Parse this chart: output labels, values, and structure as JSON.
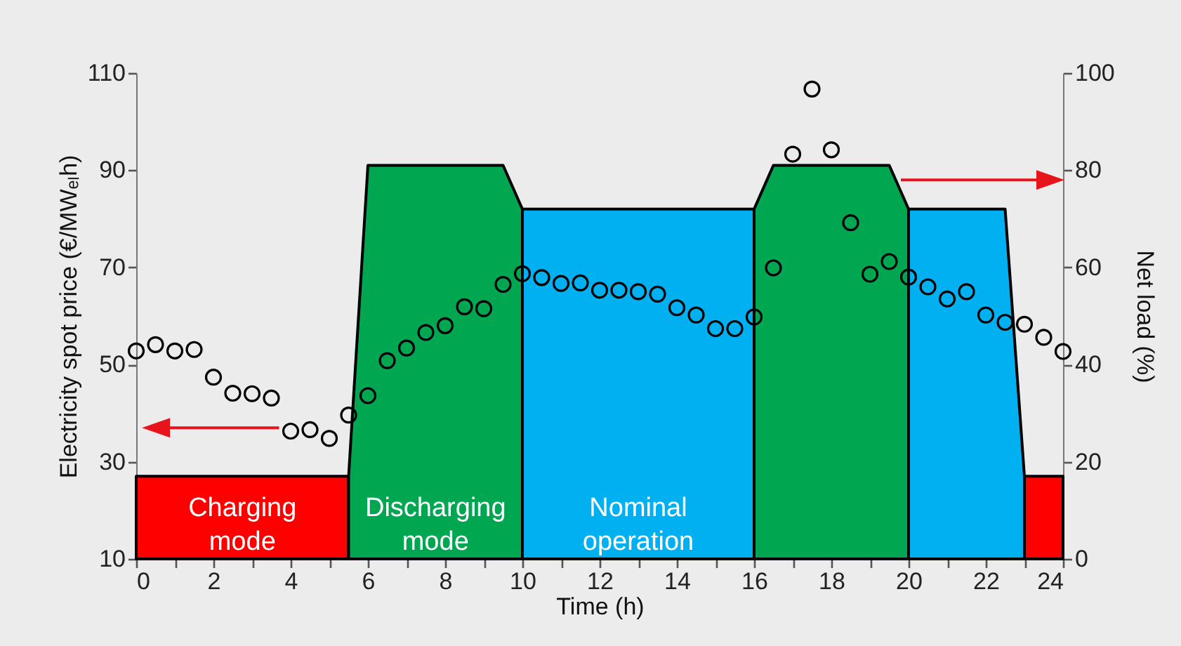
{
  "chart_data": {
    "type": "scatter",
    "xlabel": "Time (h)",
    "ylabel": "Electricity spot price (€/MWₑₗh)",
    "y2label": "Net load (%)",
    "xlim": [
      0,
      24
    ],
    "xticks": [
      0,
      {
        "value": 1,
        "label": null
      },
      2,
      {
        "value": 3,
        "label": null
      },
      4,
      {
        "value": 5,
        "label": null
      },
      6,
      {
        "value": 7,
        "label": null
      },
      8,
      {
        "value": 9,
        "label": null
      },
      10,
      {
        "value": 11,
        "label": null
      },
      12,
      {
        "value": 13,
        "label": null
      },
      14,
      {
        "value": 15,
        "label": null
      },
      16,
      {
        "value": 17,
        "label": null
      },
      18,
      {
        "value": 19,
        "label": null
      },
      20,
      {
        "value": 21,
        "label": null
      },
      22,
      {
        "value": 23,
        "label": null
      },
      24
    ],
    "ylim": [
      10,
      110
    ],
    "yticks": [
      10,
      30,
      50,
      70,
      90,
      110
    ],
    "y2lim": [
      0,
      100
    ],
    "y2ticks": [
      0,
      20,
      40,
      60,
      80,
      100
    ],
    "grid": false,
    "series": [
      {
        "type": "area",
        "axis": "y2",
        "color": "#ff0000",
        "x": [
          0,
          5.5
        ],
        "values": [
          17,
          17
        ]
      },
      {
        "type": "area",
        "axis": "y2",
        "color": "#00a650",
        "x": [
          5.5,
          6,
          9.5,
          10
        ],
        "values": [
          17,
          81,
          81,
          72
        ]
      },
      {
        "type": "area",
        "axis": "y2",
        "color": "#00b0f0",
        "x": [
          10,
          16
        ],
        "values": [
          72,
          72
        ]
      },
      {
        "type": "area",
        "axis": "y2",
        "color": "#00a650",
        "x": [
          16,
          16.5,
          19.5,
          20
        ],
        "values": [
          72,
          81,
          81,
          72
        ]
      },
      {
        "type": "area",
        "axis": "y2",
        "color": "#00b0f0",
        "x": [
          20,
          22.5,
          23
        ],
        "values": [
          72,
          72,
          17
        ]
      },
      {
        "type": "area",
        "axis": "y2",
        "color": "#ff0000",
        "x": [
          23,
          24
        ],
        "values": [
          17,
          17
        ]
      },
      {
        "marker": "circle",
        "color": "#000000",
        "x": [
          0,
          0.5,
          1,
          1.5,
          2,
          2.5,
          3,
          3.5,
          4,
          4.5,
          5,
          5.5,
          6,
          6.5,
          7,
          7.5,
          8,
          8.5,
          9,
          9.5,
          10,
          10.5,
          11,
          11.5,
          12,
          12.5,
          13,
          13.5,
          14,
          14.5,
          15,
          15.5,
          16,
          16.5,
          17,
          17.5,
          18,
          18.5,
          19,
          19.5,
          20,
          20.5,
          21,
          21.5,
          22,
          22.5,
          23,
          23.5,
          24
        ],
        "values": [
          52.8,
          54.1,
          52.8,
          53.1,
          47.4,
          44.1,
          44.0,
          43.1,
          36.3,
          36.6,
          34.8,
          39.6,
          43.6,
          50.8,
          53.4,
          56.6,
          58.0,
          61.9,
          61.5,
          66.5,
          68.7,
          67.9,
          66.7,
          66.8,
          65.3,
          65.3,
          65.0,
          64.5,
          61.7,
          60.2,
          57.4,
          57.4,
          59.8,
          69.9,
          93.3,
          106.7,
          94.2,
          79.2,
          68.6,
          71.2,
          68.0,
          66.0,
          63.5,
          65.0,
          60.2,
          58.7,
          58.3,
          55.6,
          52.7
        ]
      }
    ],
    "annotations": [
      "Charging mode",
      "Discharging mode",
      "Nominal operation"
    ]
  }
}
